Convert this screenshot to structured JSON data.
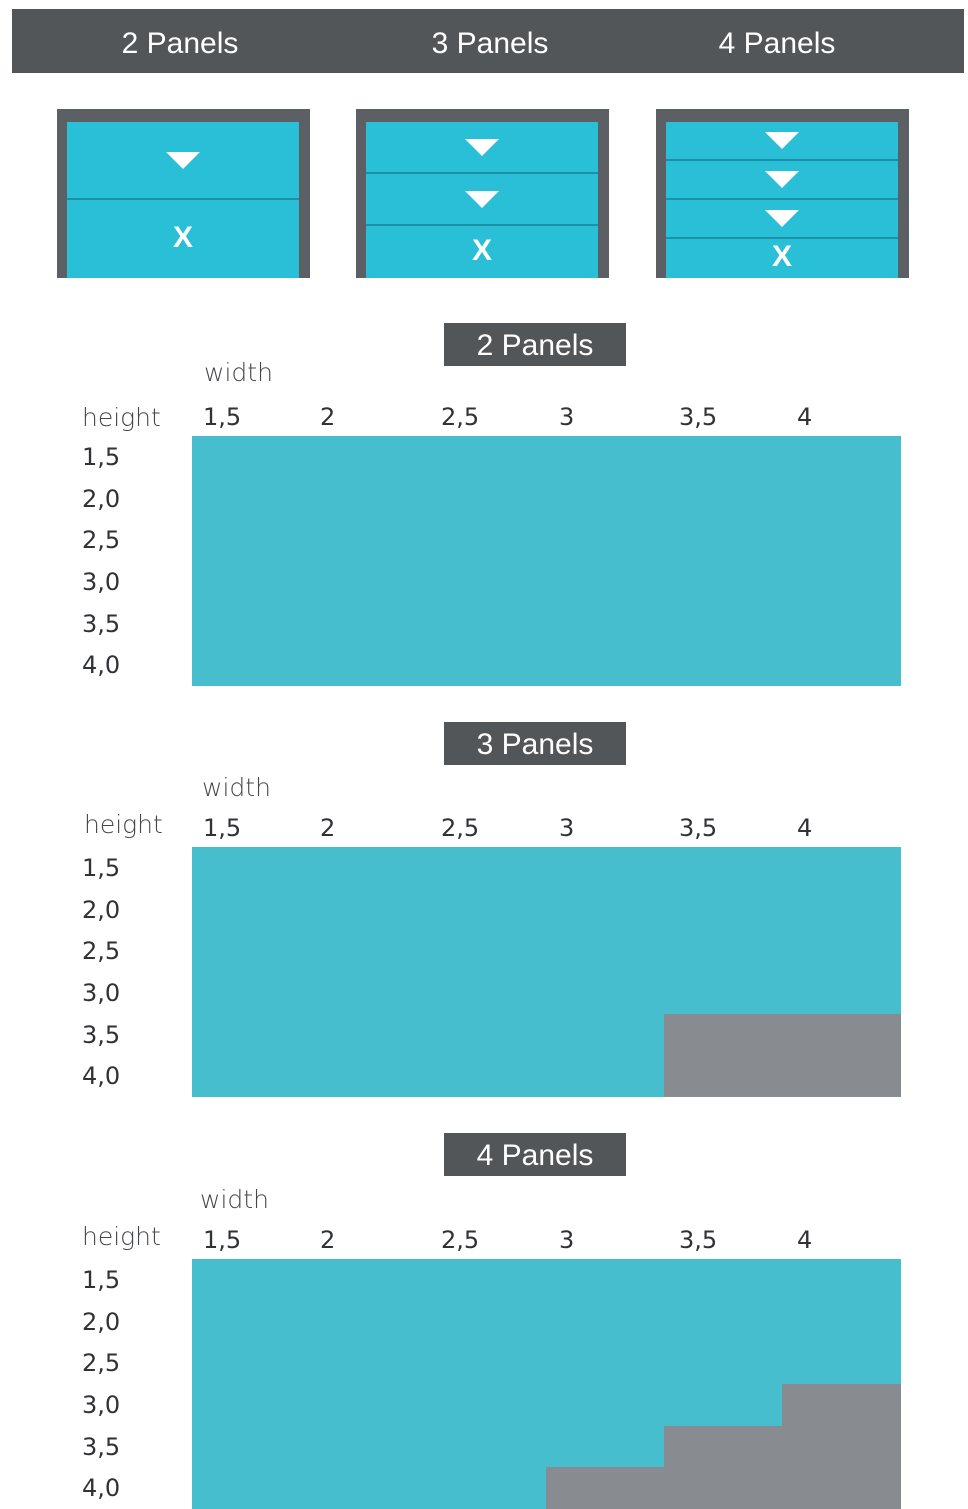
{
  "header": {
    "tabs": [
      {
        "label": "2 Panels"
      },
      {
        "label": "3 Panels"
      },
      {
        "label": "4 Panels"
      }
    ]
  },
  "illustrations": [
    {
      "panels": 2,
      "arrows": 1,
      "x_label": "X"
    },
    {
      "panels": 3,
      "arrows": 2,
      "x_label": "X"
    },
    {
      "panels": 4,
      "arrows": 3,
      "x_label": "X"
    }
  ],
  "colors": {
    "available": "#46bece",
    "unavailable": "#888b8f",
    "header_bg": "#535659",
    "panel_face": "#29bfd7",
    "panel_frame": "#5c5f63"
  },
  "tables": [
    {
      "title": "2 Panels",
      "width_label": "width",
      "height_label": "height",
      "widths": [
        "1,5",
        "2",
        "2,5",
        "3",
        "3,5",
        "4"
      ],
      "heights": [
        "1,5",
        "2,0",
        "2,5",
        "3,0",
        "3,5",
        "4,0"
      ],
      "availability": [
        [
          1,
          1,
          1,
          1,
          1,
          1
        ],
        [
          1,
          1,
          1,
          1,
          1,
          1
        ],
        [
          1,
          1,
          1,
          1,
          1,
          1
        ],
        [
          1,
          1,
          1,
          1,
          1,
          1
        ],
        [
          1,
          1,
          1,
          1,
          1,
          1
        ],
        [
          1,
          1,
          1,
          1,
          1,
          1
        ]
      ]
    },
    {
      "title": "3 Panels",
      "width_label": "width",
      "height_label": "height",
      "widths": [
        "1,5",
        "2",
        "2,5",
        "3",
        "3,5",
        "4"
      ],
      "heights": [
        "1,5",
        "2,0",
        "2,5",
        "3,0",
        "3,5",
        "4,0"
      ],
      "availability": [
        [
          1,
          1,
          1,
          1,
          1,
          1
        ],
        [
          1,
          1,
          1,
          1,
          1,
          1
        ],
        [
          1,
          1,
          1,
          1,
          1,
          1
        ],
        [
          1,
          1,
          1,
          1,
          1,
          1
        ],
        [
          1,
          1,
          1,
          1,
          0,
          0
        ],
        [
          1,
          1,
          1,
          1,
          0,
          0
        ]
      ]
    },
    {
      "title": "4 Panels",
      "width_label": "width",
      "height_label": "height",
      "widths": [
        "1,5",
        "2",
        "2,5",
        "3",
        "3,5",
        "4"
      ],
      "heights": [
        "1,5",
        "2,0",
        "2,5",
        "3,0",
        "3,5",
        "4,0"
      ],
      "availability": [
        [
          1,
          1,
          1,
          1,
          1,
          1
        ],
        [
          1,
          1,
          1,
          1,
          1,
          1
        ],
        [
          1,
          1,
          1,
          1,
          1,
          1
        ],
        [
          1,
          1,
          1,
          1,
          1,
          0
        ],
        [
          1,
          1,
          1,
          1,
          0,
          0
        ],
        [
          1,
          1,
          1,
          0,
          0,
          0
        ]
      ]
    }
  ]
}
